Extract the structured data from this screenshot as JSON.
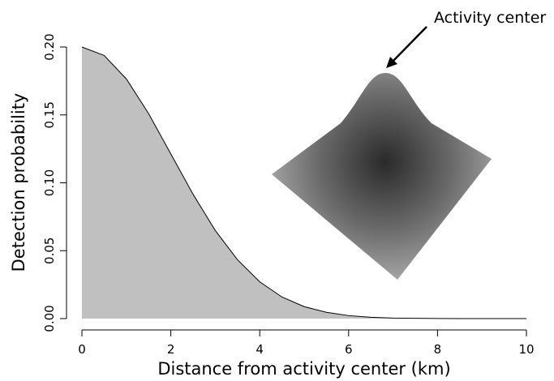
{
  "chart_data": {
    "type": "area",
    "xlabel": "Distance from activity center (km)",
    "ylabel": "Detection probability",
    "annotation": "Activity center",
    "x": [
      0,
      0.5,
      1,
      1.5,
      2,
      2.5,
      3,
      3.5,
      4,
      4.5,
      5,
      5.5,
      6,
      6.5,
      7,
      7.5,
      8,
      8.5,
      9,
      9.5,
      10
    ],
    "values": [
      0.2,
      0.1938,
      0.1765,
      0.151,
      0.1213,
      0.0916,
      0.0649,
      0.0433,
      0.0271,
      0.0159,
      0.0088,
      0.0046,
      0.0022,
      0.001,
      0.0004,
      0.0002,
      0.0001,
      0,
      0,
      0,
      0
    ],
    "color": "#c0c0c0",
    "xlim": [
      0,
      10
    ],
    "xticks": [
      0,
      2,
      4,
      6,
      8,
      10
    ],
    "ylim": [
      0,
      0.2
    ],
    "yticks": [
      {
        "value": 0,
        "label": "0.00"
      },
      {
        "value": 0.05,
        "label": "0.05"
      },
      {
        "value": 0.1,
        "label": "0.10"
      },
      {
        "value": 0.15,
        "label": "0.15"
      },
      {
        "value": 0.2,
        "label": "0.20"
      }
    ]
  }
}
